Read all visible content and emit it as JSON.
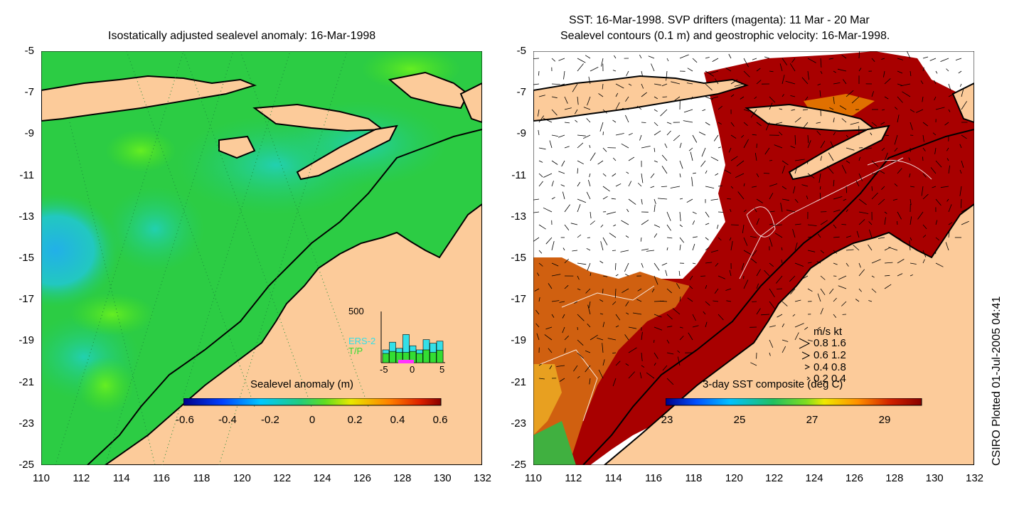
{
  "left_panel": {
    "title": "Isostatically adjusted sealevel anomaly: 16-Mar-1998",
    "colorbar_label": "Sealevel anomaly (m)",
    "colorbar_ticks": [
      "-0.6",
      "-0.4",
      "-0.2",
      "0",
      "0.2",
      "0.4",
      "0.6"
    ],
    "inset": {
      "y_label": "500",
      "legend": [
        "ERS-2",
        "T/P"
      ],
      "x_ticks": [
        "-5",
        "0",
        "5"
      ],
      "colors": {
        "ers2": "#33e0e8",
        "tp": "#33dd33",
        "marker": "#ff33ff"
      },
      "bars_ers2": [
        0.25,
        0.4,
        0.28,
        0.55,
        0.33,
        0.25,
        0.45,
        0.38,
        0.42
      ],
      "bars_tp": [
        0.18,
        0.22,
        0.2,
        0.2,
        0.22,
        0.18,
        0.25,
        0.2,
        0.24
      ]
    }
  },
  "right_panel": {
    "title_line1": "SST: 16-Mar-1998. SVP drifters (magenta): 11 Mar - 20 Mar",
    "title_line2": "Sealevel contours (0.1 m) and geostrophic velocity: 16-Mar-1998.",
    "colorbar_label": "3-day SST composite (deg C)",
    "colorbar_ticks": [
      "23",
      "25",
      "27",
      "29"
    ],
    "velocity_legend": {
      "header": "m/s  kt",
      "rows": [
        "0.8  1.6",
        "0.6  1.2",
        "0.4  0.8",
        "0.2  0.4"
      ]
    }
  },
  "axes": {
    "x_ticks": [
      "110",
      "112",
      "114",
      "116",
      "118",
      "120",
      "122",
      "124",
      "126",
      "128",
      "130",
      "132"
    ],
    "y_ticks": [
      "-5",
      "-7",
      "-9",
      "-11",
      "-13",
      "-15",
      "-17",
      "-19",
      "-21",
      "-23",
      "-25"
    ]
  },
  "credit": "CSIRO Plotted 01-Jul-2005 04:41",
  "colors": {
    "land": "#fccb9a",
    "sla_ocean": "#22cc44",
    "sst_hot": "#a80000",
    "sst_mid": "#d06010",
    "no_data": "#ffffff"
  }
}
